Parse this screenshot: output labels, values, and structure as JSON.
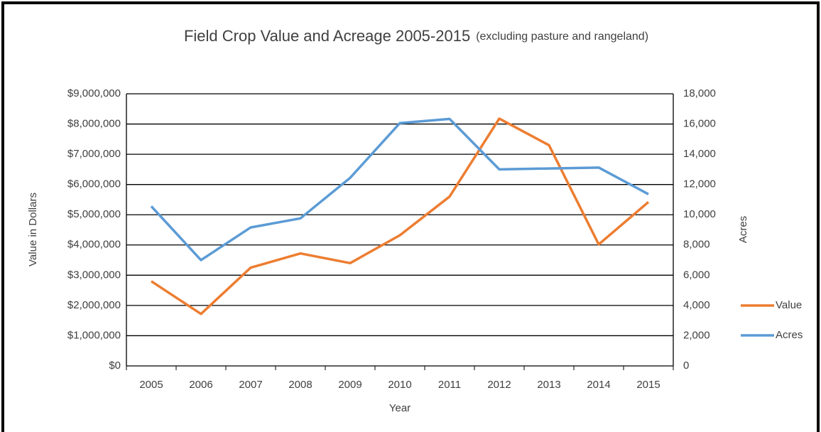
{
  "chart_data": {
    "type": "line",
    "title": "Field Crop Value and Acreage 2005-2015",
    "subtitle": "(excluding pasture and rangeland)",
    "x_label": "Year",
    "y_label": "Value in Dollars",
    "y2_label": "Acres",
    "categories": [
      "2005",
      "2006",
      "2007",
      "2008",
      "2009",
      "2010",
      "2011",
      "2012",
      "2013",
      "2014",
      "2015"
    ],
    "series": [
      {
        "name": "Value",
        "color": "#ed7d31",
        "values": [
          2800000,
          1720000,
          3250000,
          3720000,
          3400000,
          4320000,
          5600000,
          8180000,
          7300000,
          4020000,
          5420000
        ]
      },
      {
        "name": "Acres",
        "color": "#5b9bd5",
        "axis": "y2",
        "values": [
          10560,
          7000,
          9160,
          9760,
          12440,
          16060,
          16340,
          13000,
          13060,
          13120,
          11360
        ]
      }
    ],
    "ylim": [
      0,
      9000000
    ],
    "yticks": [
      {
        "value": 0,
        "label": "$0"
      },
      {
        "value": 1000000,
        "label": "$1,000,000"
      },
      {
        "value": 2000000,
        "label": "$2,000,000"
      },
      {
        "value": 3000000,
        "label": "$3,000,000"
      },
      {
        "value": 4000000,
        "label": "$4,000,000"
      },
      {
        "value": 5000000,
        "label": "$5,000,000"
      },
      {
        "value": 6000000,
        "label": "$6,000,000"
      },
      {
        "value": 7000000,
        "label": "$7,000,000"
      },
      {
        "value": 8000000,
        "label": "$8,000,000"
      },
      {
        "value": 9000000,
        "label": "$9,000,000"
      }
    ],
    "y2lim": [
      0,
      18000
    ],
    "y2ticks": [
      0,
      {
        "value": 2000,
        "label": "2,000"
      },
      {
        "value": 4000,
        "label": "4,000"
      },
      {
        "value": 6000,
        "label": "6,000"
      },
      {
        "value": 8000,
        "label": "8,000"
      },
      {
        "value": 10000,
        "label": "10,000"
      },
      {
        "value": 12000,
        "label": "12,000"
      },
      {
        "value": 14000,
        "label": "14,000"
      },
      {
        "value": 16000,
        "label": "16,000"
      },
      {
        "value": 18000,
        "label": "18,000"
      }
    ],
    "grid": true,
    "legend": "right"
  }
}
